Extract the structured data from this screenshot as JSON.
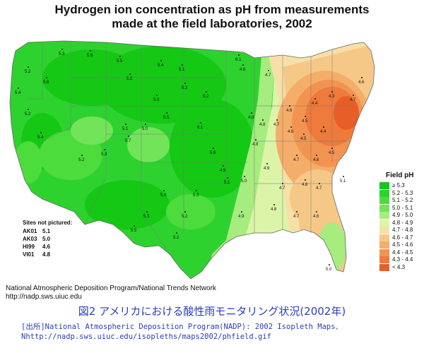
{
  "title": {
    "line1": "Hydrogen ion concentration as pH from measurements",
    "line2": "made at the field laboratories, 2002"
  },
  "legend": {
    "title": "Field pH",
    "items": [
      {
        "label": "≥ 5.3",
        "color": "#14c814"
      },
      {
        "label": "5.2 - 5.3",
        "color": "#2ed22e"
      },
      {
        "label": "5.1 - 5.2",
        "color": "#4cdc3c"
      },
      {
        "label": "5.0 - 5.1",
        "color": "#72e45a"
      },
      {
        "label": "4.9 - 5.0",
        "color": "#a6ec7e"
      },
      {
        "label": "4.8 - 4.9",
        "color": "#dcf4a8"
      },
      {
        "label": "4.7 - 4.8",
        "color": "#f7e0a8"
      },
      {
        "label": "4.6 - 4.7",
        "color": "#f6c888"
      },
      {
        "label": "4.5 - 4.6",
        "color": "#f5ad6a"
      },
      {
        "label": "4.4 - 4.5",
        "color": "#f29451"
      },
      {
        "label": "4.3 - 4.4",
        "color": "#ee7a3c"
      },
      {
        "label": "< 4.3",
        "color": "#e85e28"
      }
    ]
  },
  "not_pictured": {
    "title": "Sites not pictured:",
    "sites": [
      {
        "site": "AK01",
        "value": "5.1"
      },
      {
        "site": "AK03",
        "value": "5.0"
      },
      {
        "site": "HI99",
        "value": "4.6"
      },
      {
        "site": "VI01",
        "value": "4.8"
      }
    ]
  },
  "credit": {
    "line1": "National Atmospheric Deposition Program/National Trends Network",
    "line2": "http://nadp.sws.uiuc.edu"
  },
  "caption_jp": "図2 アメリカにおける酸性雨モニタリング状況(2002年)",
  "source_jp": {
    "line1": "[出所]National Atmospheric Deposition Program(NADP): 2002 Isopleth Maps、",
    "line2": "Nhttp://nadp.sws.uiuc.edu/isopleths/maps2002/phfield.gif"
  },
  "sites": [
    {
      "v": "5.3"
    },
    {
      "v": "5.2"
    },
    {
      "v": "5.6"
    },
    {
      "v": "5.4"
    },
    {
      "v": "5.2"
    },
    {
      "v": "5.6"
    },
    {
      "v": "6.1"
    },
    {
      "v": "5.5"
    },
    {
      "v": "5.2"
    },
    {
      "v": "5.4"
    },
    {
      "v": "5.0"
    },
    {
      "v": "5.1"
    },
    {
      "v": "5.3"
    },
    {
      "v": "5.2"
    },
    {
      "v": "5.5"
    },
    {
      "v": "5.7"
    },
    {
      "v": "5.1"
    },
    {
      "v": "5.0"
    },
    {
      "v": "5.3"
    },
    {
      "v": "5.2"
    },
    {
      "v": "5.4"
    },
    {
      "v": "6.1"
    },
    {
      "v": "5.6"
    },
    {
      "v": "4.9"
    },
    {
      "v": "4.8"
    },
    {
      "v": "4.7"
    },
    {
      "v": "4.6"
    },
    {
      "v": "4.5"
    },
    {
      "v": "4.4"
    },
    {
      "v": "4.3"
    },
    {
      "v": "4.7"
    },
    {
      "v": "4.6"
    },
    {
      "v": "4.5"
    },
    {
      "v": "4.7"
    },
    {
      "v": "4.8"
    },
    {
      "v": "4.9"
    },
    {
      "v": "5.0"
    },
    {
      "v": "5.1"
    },
    {
      "v": "5.3"
    },
    {
      "v": "5.2"
    },
    {
      "v": "5.0"
    },
    {
      "v": "4.9"
    },
    {
      "v": "4.7"
    },
    {
      "v": "4.6"
    },
    {
      "v": "4.8"
    },
    {
      "v": "4.7"
    },
    {
      "v": "5.0"
    },
    {
      "v": "5.1"
    },
    {
      "v": "5.5"
    },
    {
      "v": "5.2"
    },
    {
      "v": "4.8"
    },
    {
      "v": "4.6"
    },
    {
      "v": "4.5"
    },
    {
      "v": "4.4"
    },
    {
      "v": "4.7"
    },
    {
      "v": "4.6"
    },
    {
      "v": "4.8"
    },
    {
      "v": "4.7"
    },
    {
      "v": "4.9"
    },
    {
      "v": "5.3"
    }
  ]
}
